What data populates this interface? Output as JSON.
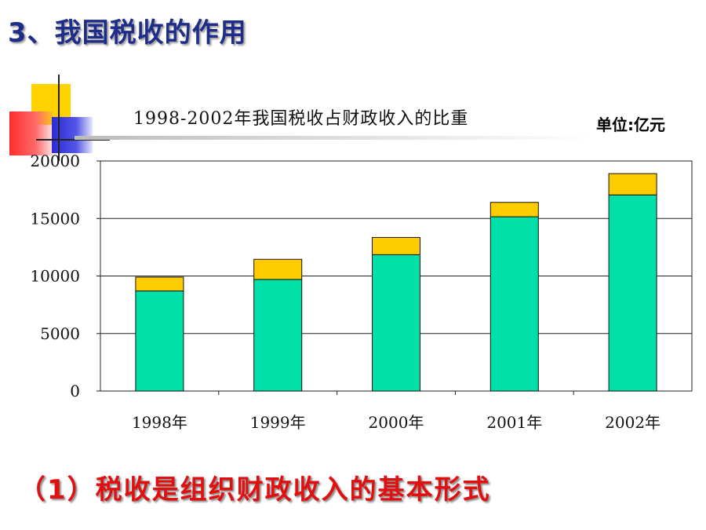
{
  "slide": {
    "title": "3、我国税收的作用",
    "conclusion": "（1）税收是组织财政收入的基本形式"
  },
  "chart_data": {
    "type": "bar",
    "stacked": true,
    "title": "1998-2002年我国税收占财政收入的比重",
    "unit": "单位:亿元",
    "categories": [
      "1998年",
      "1999年",
      "2000年",
      "2001年",
      "2002年"
    ],
    "series": [
      {
        "color": "#00e0a8",
        "values": [
          8700,
          9700,
          11850,
          15150,
          17050
        ]
      },
      {
        "color": "#ffcc00",
        "values": [
          1200,
          1750,
          1500,
          1250,
          1850
        ]
      }
    ],
    "ylim": [
      0,
      20000
    ],
    "yticks": [
      "0",
      "5000",
      "10000",
      "15000",
      "20000"
    ],
    "ytick_values": [
      0,
      5000,
      10000,
      15000,
      20000
    ],
    "grid": true,
    "legend": "none"
  }
}
